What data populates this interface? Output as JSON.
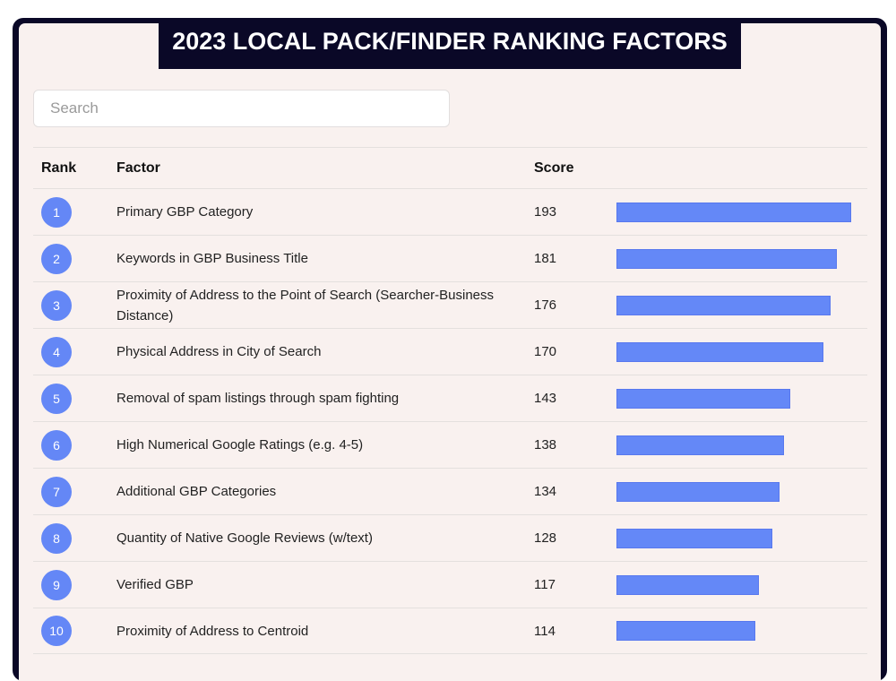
{
  "header": {
    "title": "2023 LOCAL PACK/FINDER RANKING FACTORS"
  },
  "search": {
    "placeholder": "Search",
    "value": ""
  },
  "table": {
    "columns": {
      "rank": "Rank",
      "factor": "Factor",
      "score": "Score"
    },
    "max_score": 193,
    "bar_color": "#6488f7",
    "rows": [
      {
        "rank": "1",
        "factor": "Primary GBP Category",
        "score": "193"
      },
      {
        "rank": "2",
        "factor": "Keywords in GBP Business Title",
        "score": "181"
      },
      {
        "rank": "3",
        "factor": "Proximity of Address to the Point of Search (Searcher-Business Distance)",
        "score": "176"
      },
      {
        "rank": "4",
        "factor": "Physical Address in City of Search",
        "score": "170"
      },
      {
        "rank": "5",
        "factor": "Removal of spam listings through spam fighting",
        "score": "143"
      },
      {
        "rank": "6",
        "factor": "High Numerical Google Ratings (e.g. 4-5)",
        "score": "138"
      },
      {
        "rank": "7",
        "factor": "Additional GBP Categories",
        "score": "134"
      },
      {
        "rank": "8",
        "factor": "Quantity of Native Google Reviews (w/text)",
        "score": "128"
      },
      {
        "rank": "9",
        "factor": "Verified GBP",
        "score": "117"
      },
      {
        "rank": "10",
        "factor": "Proximity of Address to Centroid",
        "score": "114"
      }
    ]
  }
}
